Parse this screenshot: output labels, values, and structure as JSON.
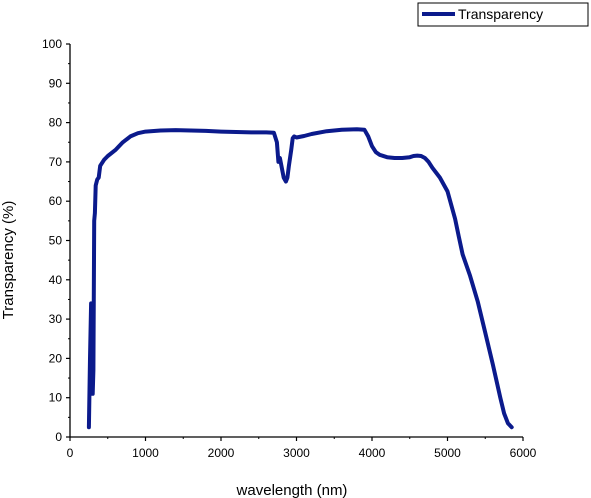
{
  "chart_data": {
    "type": "line",
    "xlabel": "wavelength (nm)",
    "ylabel": "Transparency (%)",
    "xlim": [
      0,
      6000
    ],
    "ylim": [
      0,
      100
    ],
    "x_ticks": [
      0,
      1000,
      2000,
      3000,
      4000,
      5000,
      6000
    ],
    "y_ticks": [
      0,
      10,
      20,
      30,
      40,
      50,
      60,
      70,
      80,
      90,
      100
    ],
    "grid": false,
    "legend_position": "top-right",
    "series": [
      {
        "name": "Transparency",
        "color": "#0b1a8c",
        "x": [
          250,
          265,
          280,
          290,
          300,
          310,
          320,
          330,
          340,
          360,
          380,
          400,
          450,
          500,
          600,
          700,
          800,
          900,
          1000,
          1200,
          1400,
          1600,
          1800,
          2000,
          2200,
          2400,
          2600,
          2700,
          2740,
          2760,
          2780,
          2800,
          2830,
          2860,
          2880,
          2900,
          2930,
          2950,
          2970,
          3000,
          3100,
          3200,
          3400,
          3600,
          3800,
          3900,
          3950,
          4000,
          4050,
          4100,
          4200,
          4300,
          4400,
          4500,
          4550,
          4600,
          4650,
          4700,
          4750,
          4800,
          4900,
          5000,
          5100,
          5150,
          5200,
          5300,
          5400,
          5500,
          5600,
          5700,
          5750,
          5800,
          5850
        ],
        "y": [
          2.5,
          20,
          34,
          30,
          11,
          17,
          55,
          57,
          64,
          65.5,
          66,
          69,
          70.5,
          71.5,
          73,
          75,
          76.5,
          77.3,
          77.7,
          78,
          78.1,
          78,
          77.9,
          77.7,
          77.6,
          77.5,
          77.5,
          77.4,
          75,
          70,
          71,
          69,
          66,
          65,
          66,
          69,
          73,
          76,
          76.5,
          76.2,
          76.6,
          77.1,
          77.8,
          78.2,
          78.3,
          78.2,
          76.5,
          74,
          72.5,
          71.8,
          71.2,
          71,
          71,
          71.2,
          71.5,
          71.6,
          71.5,
          71,
          70,
          68.5,
          66,
          62.5,
          55.5,
          51,
          46.5,
          41,
          34.5,
          26.5,
          18.5,
          10,
          6,
          3.5,
          2.5
        ]
      }
    ]
  }
}
